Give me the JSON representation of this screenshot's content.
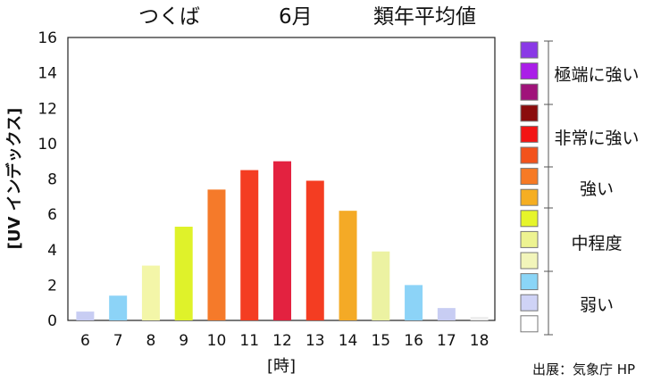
{
  "chart_data": {
    "type": "bar",
    "title_place": "つくば",
    "title_month": "6月",
    "title_kind": "類年平均値",
    "ylabel": "[UV インデックス]",
    "xlabel": "[時]",
    "source": "出展：気象庁 HP",
    "ylim": [
      0,
      16
    ],
    "yticks": [
      "0",
      "2",
      "4",
      "6",
      "8",
      "10",
      "12",
      "14",
      "16"
    ],
    "categories": [
      "6",
      "7",
      "8",
      "9",
      "10",
      "11",
      "12",
      "13",
      "14",
      "15",
      "16",
      "17",
      "18"
    ],
    "values": [
      0.5,
      1.4,
      3.1,
      5.3,
      7.4,
      8.5,
      9.0,
      7.9,
      6.2,
      3.9,
      2.0,
      0.7,
      0.2
    ],
    "bar_colors": [
      "#c8cdf3",
      "#8cd3f7",
      "#f3f6a8",
      "#dff22a",
      "#f57a2a",
      "#f43d22",
      "#e32240",
      "#f43d22",
      "#f4aa26",
      "#ecf2a2",
      "#8cd3f7",
      "#c8cdf3",
      "#eeeeee"
    ],
    "scale": [
      {
        "color": "#8a39e6"
      },
      {
        "color": "#aa1ee8"
      },
      {
        "color": "#a0137a"
      },
      {
        "color": "#8b0d0d"
      },
      {
        "color": "#f21414"
      },
      {
        "color": "#f2521c"
      },
      {
        "color": "#f67a25"
      },
      {
        "color": "#f5ae22"
      },
      {
        "color": "#e6f52a"
      },
      {
        "color": "#edf391"
      },
      {
        "color": "#f2f5ba"
      },
      {
        "color": "#8ad5f7"
      },
      {
        "color": "#cfd3f6"
      },
      {
        "color": "#ffffff"
      }
    ],
    "levels": [
      "極端に強い",
      "非常に強い",
      "強い",
      "中程度",
      "弱い"
    ]
  }
}
